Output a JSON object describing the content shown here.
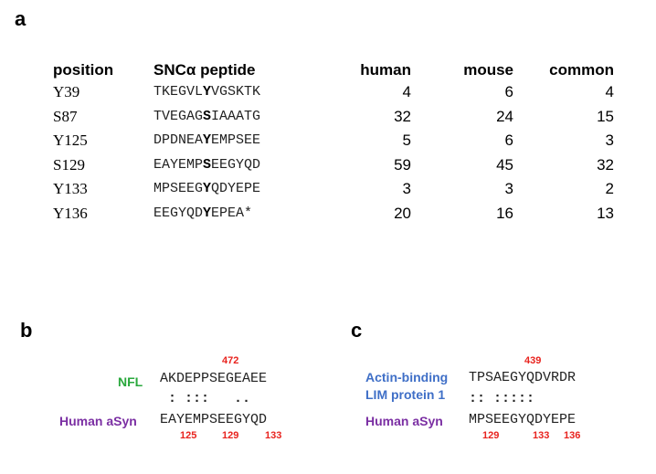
{
  "panels": {
    "a": "a",
    "b": "b",
    "c": "c"
  },
  "table": {
    "headers": {
      "position": "position",
      "peptide": "SNCα peptide",
      "human": "human",
      "mouse": "mouse",
      "common": "common"
    },
    "rows": [
      {
        "position": "Y39",
        "pre": "TKEGVL",
        "mod": "Y",
        "post": "VGSKTK",
        "human": "4",
        "mouse": "6",
        "common": "4"
      },
      {
        "position": "S87",
        "pre": "TVEGAG",
        "mod": "S",
        "post": "IAAATG",
        "human": "32",
        "mouse": "24",
        "common": "15"
      },
      {
        "position": "Y125",
        "pre": "DPDNEA",
        "mod": "Y",
        "post": "EMPSEE",
        "human": "5",
        "mouse": "6",
        "common": "3"
      },
      {
        "position": "S129",
        "pre": "EAYEMP",
        "mod": "S",
        "post": "EEGYQD",
        "human": "59",
        "mouse": "45",
        "common": "32"
      },
      {
        "position": "Y133",
        "pre": "MPSEEG",
        "mod": "Y",
        "post": "QDYEPE",
        "human": "3",
        "mouse": "3",
        "common": "2"
      },
      {
        "position": "Y136",
        "pre": "EEGYQD",
        "mod": "Y",
        "post": "EPEA*",
        "human": "20",
        "mouse": "16",
        "common": "13"
      }
    ]
  },
  "panel_b": {
    "top_label": "NFL",
    "top_seq": "AKDEPPSEGEAEE",
    "top_number": "472",
    "match": " : :::   ..",
    "bottom_label": "Human aSyn",
    "bottom_seq": "EAYEMPSEEGYQD",
    "bottom_numbers": [
      "125",
      "129",
      "133"
    ],
    "colors": {
      "top_label": "#29a83c",
      "bottom_label": "#7b2fa3"
    }
  },
  "panel_c": {
    "top_label_line1": "Actin-binding",
    "top_label_line2": "LIM protein 1",
    "top_seq": "TPSAEGYQDVRDR",
    "top_number": "439",
    "match": ":: :::::",
    "bottom_label": "Human aSyn",
    "bottom_seq": "MPSEEGYQDYEPE",
    "bottom_numbers": [
      "129",
      "133",
      "136"
    ],
    "colors": {
      "top_label": "#3f6fc7",
      "bottom_label": "#7b2fa3"
    }
  }
}
